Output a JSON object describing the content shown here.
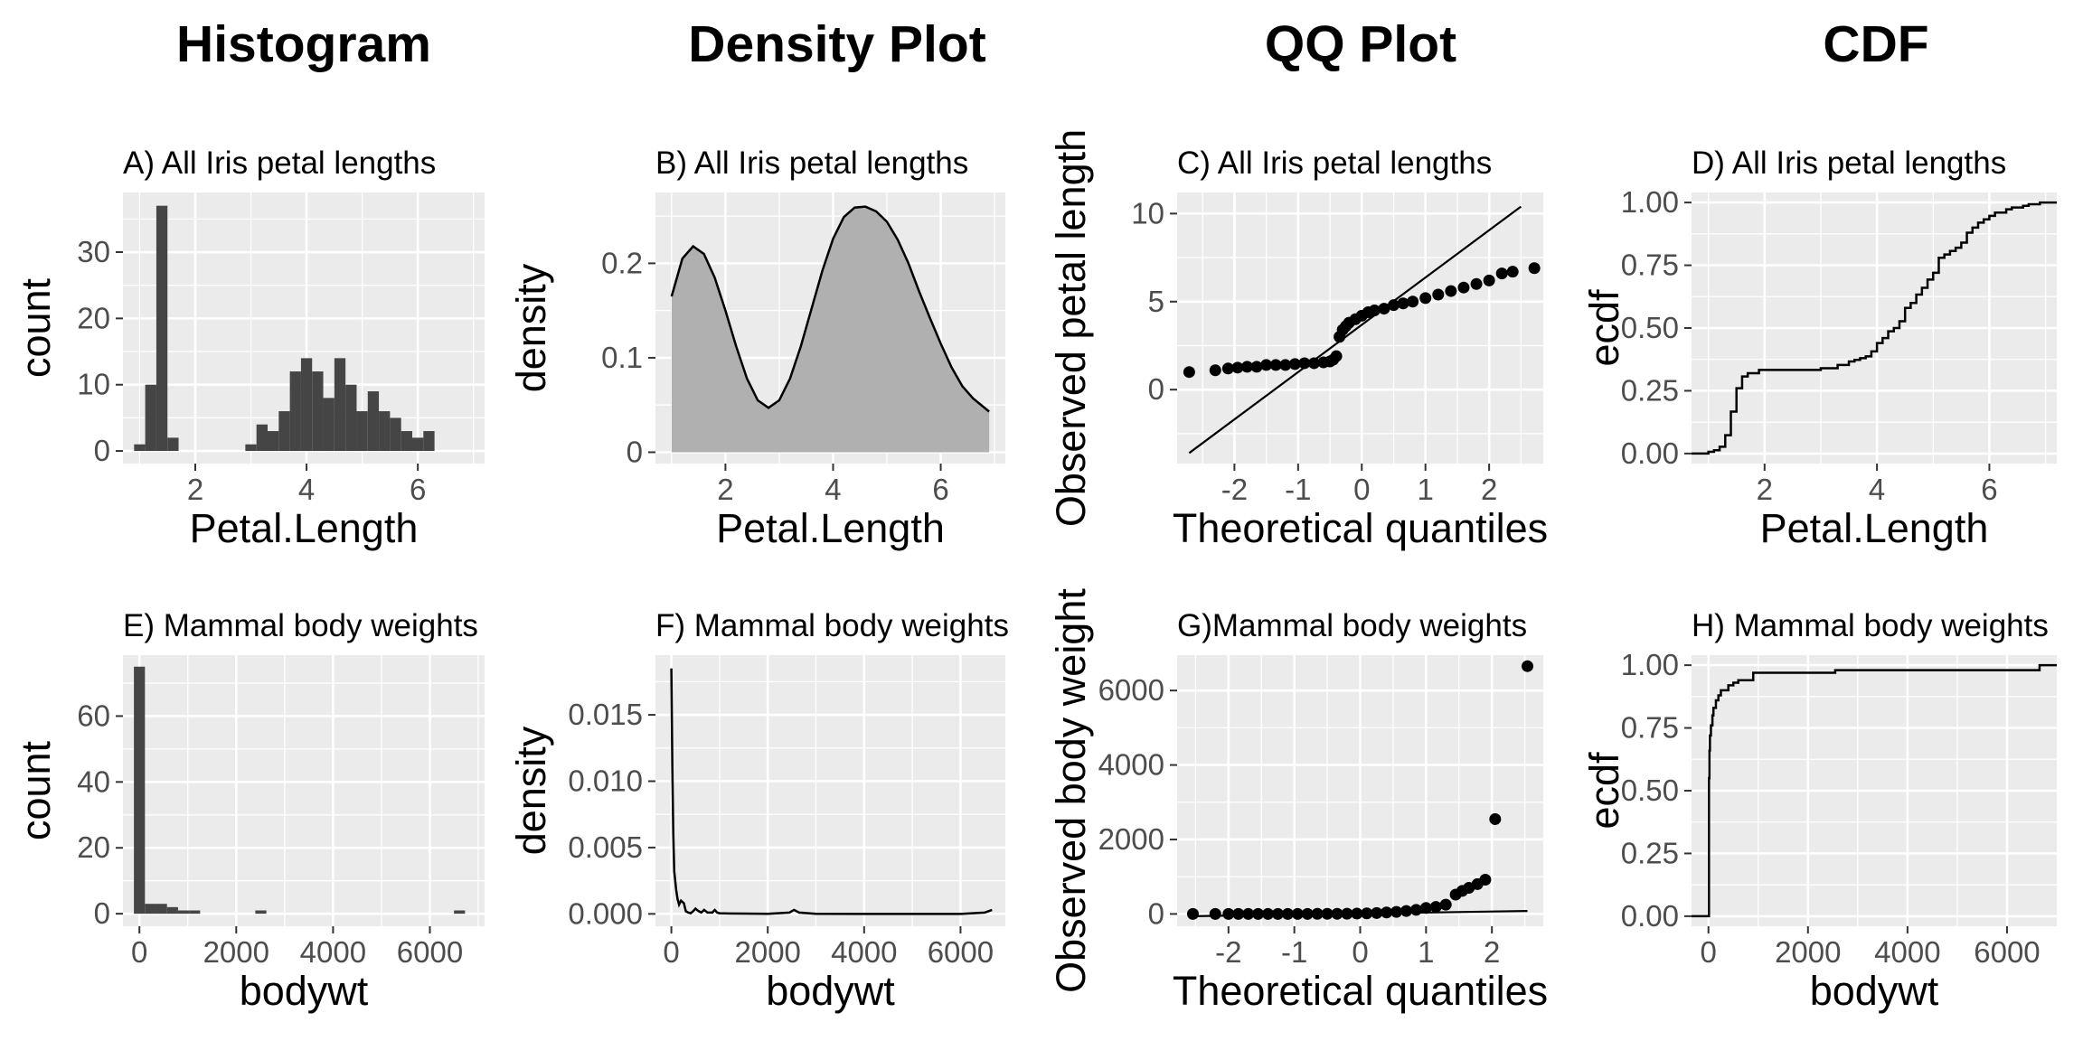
{
  "column_titles": [
    "Histogram",
    "Density Plot",
    "QQ Plot",
    "CDF"
  ],
  "chart_data": [
    {
      "id": "A",
      "type": "bar",
      "title": "A) All Iris petal lengths",
      "xlabel": "Petal.Length",
      "ylabel": "count",
      "xlim": [
        0.7,
        7.2
      ],
      "ylim": [
        -1.9,
        39
      ],
      "xticks": [
        2,
        4,
        6
      ],
      "yticks": [
        0,
        10,
        20,
        30
      ],
      "bin_width": 0.2,
      "bin_lefts": [
        0.9,
        1.1,
        1.3,
        1.5,
        1.7,
        1.9,
        2.1,
        2.3,
        2.5,
        2.7,
        2.9,
        3.1,
        3.3,
        3.5,
        3.7,
        3.9,
        4.1,
        4.3,
        4.5,
        4.7,
        4.9,
        5.1,
        5.3,
        5.5,
        5.7,
        5.9,
        6.1,
        6.3,
        6.5,
        6.7
      ],
      "values": [
        1,
        10,
        37,
        2,
        0,
        0,
        0,
        0,
        0,
        0,
        1,
        4,
        3,
        6,
        12,
        14,
        12,
        8,
        14,
        10,
        6,
        9,
        6,
        5,
        3,
        2,
        3,
        0,
        0,
        0
      ]
    },
    {
      "id": "B",
      "type": "area",
      "title": "B) All Iris petal lengths",
      "xlabel": "Petal.Length",
      "ylabel": "density",
      "xlim": [
        0.7,
        7.2
      ],
      "ylim": [
        -0.012,
        0.275
      ],
      "xticks": [
        2,
        4,
        6
      ],
      "yticks": [
        0.0,
        0.1,
        0.2
      ],
      "x": [
        1.0,
        1.2,
        1.4,
        1.6,
        1.8,
        2.0,
        2.2,
        2.4,
        2.6,
        2.8,
        3.0,
        3.2,
        3.4,
        3.6,
        3.8,
        4.0,
        4.2,
        4.4,
        4.6,
        4.8,
        5.0,
        5.2,
        5.4,
        5.6,
        5.8,
        6.0,
        6.2,
        6.4,
        6.6,
        6.9
      ],
      "y": [
        0.165,
        0.205,
        0.218,
        0.21,
        0.185,
        0.15,
        0.112,
        0.078,
        0.055,
        0.047,
        0.055,
        0.078,
        0.112,
        0.152,
        0.192,
        0.226,
        0.249,
        0.259,
        0.26,
        0.255,
        0.244,
        0.225,
        0.2,
        0.17,
        0.142,
        0.115,
        0.09,
        0.07,
        0.057,
        0.043
      ]
    },
    {
      "id": "C",
      "type": "scatter",
      "title": "C) All Iris petal lengths",
      "xlabel": "Theoretical quantiles",
      "ylabel": "Observed petal length",
      "xlim": [
        -2.9,
        2.85
      ],
      "ylim": [
        -4.2,
        11.2
      ],
      "xticks": [
        -2,
        -1,
        0,
        1,
        2
      ],
      "xtick_labels": [
        "-2",
        "-1",
        "0",
        "1",
        "2"
      ],
      "yticks": [
        0,
        5,
        10
      ],
      "x": [
        -2.71,
        -2.3,
        -2.1,
        -1.95,
        -1.8,
        -1.65,
        -1.5,
        -1.35,
        -1.2,
        -1.05,
        -0.9,
        -0.75,
        -0.6,
        -0.5,
        -0.45,
        -0.4,
        -0.35,
        -0.3,
        -0.25,
        -0.2,
        -0.1,
        0.0,
        0.1,
        0.2,
        0.35,
        0.5,
        0.65,
        0.8,
        1.0,
        1.2,
        1.4,
        1.6,
        1.8,
        2.0,
        2.2,
        2.37,
        2.71
      ],
      "y": [
        1.0,
        1.1,
        1.2,
        1.25,
        1.3,
        1.3,
        1.4,
        1.4,
        1.4,
        1.45,
        1.5,
        1.5,
        1.55,
        1.6,
        1.7,
        1.9,
        3.0,
        3.4,
        3.6,
        3.8,
        4.0,
        4.2,
        4.4,
        4.5,
        4.6,
        4.8,
        4.9,
        5.0,
        5.2,
        5.4,
        5.6,
        5.8,
        6.0,
        6.2,
        6.6,
        6.7,
        6.9
      ],
      "reference_line": {
        "x": [
          -2.71,
          2.5
        ],
        "y": [
          -3.6,
          10.4
        ]
      }
    },
    {
      "id": "D",
      "type": "line",
      "title": "D) All Iris petal lengths",
      "xlabel": "Petal.Length",
      "ylabel": "ecdf",
      "xlim": [
        0.7,
        7.2
      ],
      "ylim": [
        -0.04,
        1.04
      ],
      "xticks": [
        2,
        4,
        6
      ],
      "yticks": [
        0.0,
        0.25,
        0.5,
        0.75,
        1.0
      ],
      "ytick_labels": [
        "0.00",
        "0.25",
        "0.50",
        "0.75",
        "1.00"
      ],
      "x": [
        0.7,
        1.0,
        1.1,
        1.2,
        1.3,
        1.4,
        1.5,
        1.6,
        1.7,
        1.9,
        3.0,
        3.3,
        3.5,
        3.6,
        3.7,
        3.8,
        3.9,
        4.0,
        4.1,
        4.2,
        4.3,
        4.4,
        4.5,
        4.6,
        4.7,
        4.8,
        4.9,
        5.0,
        5.1,
        5.2,
        5.3,
        5.4,
        5.5,
        5.6,
        5.7,
        5.8,
        5.9,
        6.0,
        6.1,
        6.3,
        6.4,
        6.6,
        6.7,
        6.9,
        7.2
      ],
      "y": [
        0.0,
        0.007,
        0.013,
        0.027,
        0.073,
        0.167,
        0.26,
        0.307,
        0.32,
        0.333,
        0.34,
        0.353,
        0.367,
        0.373,
        0.38,
        0.387,
        0.407,
        0.44,
        0.46,
        0.487,
        0.5,
        0.527,
        0.58,
        0.6,
        0.633,
        0.66,
        0.693,
        0.72,
        0.78,
        0.793,
        0.807,
        0.82,
        0.84,
        0.88,
        0.9,
        0.92,
        0.933,
        0.947,
        0.96,
        0.973,
        0.98,
        0.987,
        0.993,
        1.0,
        1.0
      ]
    },
    {
      "id": "E",
      "type": "bar",
      "title": "E) Mammal body weights",
      "xlabel": "bodywt",
      "ylabel": "count",
      "xlim": [
        -340,
        7130
      ],
      "ylim": [
        -3.8,
        78.5
      ],
      "xticks": [
        0,
        2000,
        4000,
        6000
      ],
      "yticks": [
        0,
        20,
        40,
        60
      ],
      "bin_width": 228,
      "bin_lefts": [
        -114,
        114,
        342,
        570,
        798,
        1026,
        2394,
        6498
      ],
      "values": [
        75,
        3,
        3,
        2,
        1,
        1,
        1,
        1
      ]
    },
    {
      "id": "F",
      "type": "line",
      "title": "F) Mammal body weights",
      "xlabel": "bodywt",
      "ylabel": "density",
      "xlim": [
        -330,
        6930
      ],
      "ylim": [
        -0.00093,
        0.0195
      ],
      "xticks": [
        0,
        2000,
        4000,
        6000
      ],
      "yticks": [
        0.0,
        0.005,
        0.01,
        0.015
      ],
      "ytick_labels": [
        "0.000",
        "0.005",
        "0.010",
        "0.015"
      ],
      "x": [
        0,
        20,
        40,
        60,
        80,
        100,
        130,
        160,
        200,
        260,
        300,
        350,
        400,
        450,
        500,
        530,
        570,
        620,
        680,
        750,
        800,
        850,
        900,
        950,
        1000,
        1200,
        1500,
        2000,
        2450,
        2547,
        2650,
        3000,
        4000,
        5000,
        6000,
        6500,
        6654
      ],
      "y": [
        0.0185,
        0.0112,
        0.006,
        0.0032,
        0.0025,
        0.0018,
        0.0011,
        0.0007,
        0.001,
        0.0008,
        0.0002,
        0.0001,
        5e-05,
        0.0002,
        0.0004,
        0.0003,
        0.0002,
        0.0001,
        0.0003,
        0.0001,
        0.0001,
        0.0001,
        0.0003,
        0.0001,
        5e-05,
        3e-05,
        2e-05,
        1e-05,
        0.0001,
        0.0003,
        0.0001,
        1e-05,
        0.0,
        0.0,
        0.0,
        0.0001,
        0.0003
      ]
    },
    {
      "id": "G",
      "type": "scatter",
      "title": "G)Mammal body weights",
      "xlabel": "Theoretical quantiles",
      "ylabel": "Observed body weight",
      "xlim": [
        -2.78,
        2.78
      ],
      "ylim": [
        -330,
        6950
      ],
      "xticks": [
        -2,
        -1,
        0,
        1,
        2
      ],
      "xtick_labels": [
        "-2",
        "-1",
        "0",
        "1",
        "2"
      ],
      "yticks": [
        0,
        2000,
        4000,
        6000
      ],
      "x": [
        -2.54,
        -2.2,
        -2.0,
        -1.85,
        -1.7,
        -1.55,
        -1.4,
        -1.25,
        -1.1,
        -0.95,
        -0.8,
        -0.65,
        -0.5,
        -0.35,
        -0.2,
        -0.05,
        0.1,
        0.25,
        0.4,
        0.55,
        0.7,
        0.85,
        1.0,
        1.15,
        1.3,
        1.45,
        1.55,
        1.65,
        1.78,
        1.9,
        2.05,
        2.54
      ],
      "y": [
        0.005,
        0.01,
        0.03,
        0.05,
        0.1,
        0.2,
        0.3,
        0.5,
        1,
        1.5,
        2,
        3,
        4,
        5,
        7,
        10,
        15,
        25,
        40,
        55,
        80,
        110,
        160,
        190,
        250,
        520,
        620,
        700,
        800,
        920,
        2547,
        6654
      ],
      "reference_line": {
        "x": [
          -2.54,
          2.54
        ],
        "y": [
          -60,
          80
        ]
      }
    },
    {
      "id": "H",
      "type": "line",
      "title": "H) Mammal body weights",
      "xlabel": "bodywt",
      "ylabel": "ecdf",
      "xlim": [
        -340,
        7000
      ],
      "ylim": [
        -0.04,
        1.04
      ],
      "xticks": [
        0,
        2000,
        4000,
        6000
      ],
      "yticks": [
        0.0,
        0.25,
        0.5,
        0.75,
        1.0
      ],
      "ytick_labels": [
        "0.00",
        "0.25",
        "0.50",
        "0.75",
        "1.00"
      ],
      "x": [
        -340,
        0,
        10,
        20,
        30,
        50,
        80,
        100,
        150,
        200,
        250,
        400,
        500,
        600,
        900,
        2547,
        6654,
        7000
      ],
      "y": [
        0.0,
        0.0,
        0.55,
        0.66,
        0.72,
        0.76,
        0.8,
        0.83,
        0.86,
        0.88,
        0.9,
        0.92,
        0.93,
        0.94,
        0.97,
        0.98,
        1.0,
        1.0
      ]
    }
  ]
}
